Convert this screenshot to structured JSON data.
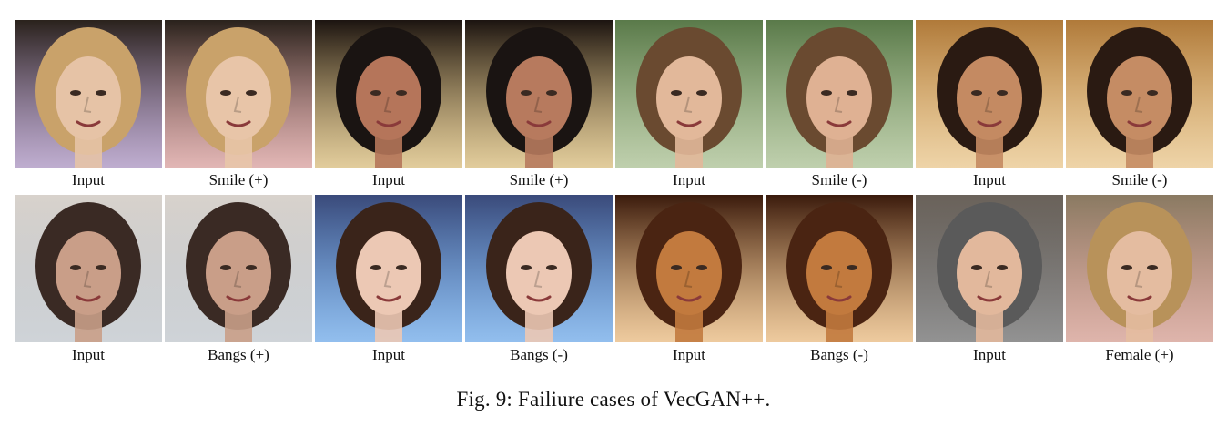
{
  "figure": {
    "rows": [
      {
        "cells": [
          {
            "label": "Input",
            "palette": {
              "bg": "#2a221c",
              "hair": "#c9a26a",
              "skin": "#e6c3a6",
              "accent": "#8a6aa8"
            }
          },
          {
            "label": "Smile (+)",
            "palette": {
              "bg": "#2a221c",
              "hair": "#c9a26a",
              "skin": "#e8c5a8",
              "accent": "#c97a78"
            }
          },
          {
            "label": "Input",
            "palette": {
              "bg": "#1c1410",
              "hair": "#1a1412",
              "skin": "#b5755a",
              "accent": "#c9a24a"
            }
          },
          {
            "label": "Smile (+)",
            "palette": {
              "bg": "#1c1410",
              "hair": "#1a1412",
              "skin": "#b77a5e",
              "accent": "#c9a24a"
            }
          },
          {
            "label": "Input",
            "palette": {
              "bg": "#5a7a4a",
              "hair": "#6a4a30",
              "skin": "#e2b89a",
              "accent": "#8aa86a"
            }
          },
          {
            "label": "Smile (-)",
            "palette": {
              "bg": "#5a7a4a",
              "hair": "#6a4a30",
              "skin": "#dfb193",
              "accent": "#8aa86a"
            }
          },
          {
            "label": "Input",
            "palette": {
              "bg": "#b07a3a",
              "hair": "#2a1a12",
              "skin": "#c48a62",
              "accent": "#e0b060"
            }
          },
          {
            "label": "Smile (-)",
            "palette": {
              "bg": "#b07a3a",
              "hair": "#2a1a12",
              "skin": "#c58c64",
              "accent": "#e0b060"
            }
          }
        ]
      },
      {
        "cells": [
          {
            "label": "Input",
            "palette": {
              "bg": "#d8d2cc",
              "hair": "#3a2a24",
              "skin": "#c99e88",
              "accent": "#a8b0b8"
            }
          },
          {
            "label": "Bangs (+)",
            "palette": {
              "bg": "#d8d2cc",
              "hair": "#3a2a24",
              "skin": "#c99e88",
              "accent": "#a8b0b8"
            }
          },
          {
            "label": "Input",
            "palette": {
              "bg": "#3a4a7a",
              "hair": "#3a241a",
              "skin": "#ecc8b4",
              "accent": "#3a8ae0"
            }
          },
          {
            "label": "Bangs (-)",
            "palette": {
              "bg": "#3a4a7a",
              "hair": "#3a241a",
              "skin": "#ecc8b4",
              "accent": "#3a8ae0"
            }
          },
          {
            "label": "Input",
            "palette": {
              "bg": "#3a1a0c",
              "hair": "#4a2412",
              "skin": "#c27a3e",
              "accent": "#e0a050"
            }
          },
          {
            "label": "Bangs (-)",
            "palette": {
              "bg": "#3a1a0c",
              "hair": "#4a2412",
              "skin": "#c27a3e",
              "accent": "#e0a050"
            }
          },
          {
            "label": "Input",
            "palette": {
              "bg": "#6a625a",
              "hair": "#5a5a5a",
              "skin": "#e2b89c",
              "accent": "#3a3a3a"
            }
          },
          {
            "label": "Female (+)",
            "palette": {
              "bg": "#8a7a62",
              "hair": "#b8925a",
              "skin": "#e4bca0",
              "accent": "#c47868"
            }
          }
        ]
      }
    ],
    "caption": "Fig. 9: Failiure cases of VecGAN++."
  }
}
